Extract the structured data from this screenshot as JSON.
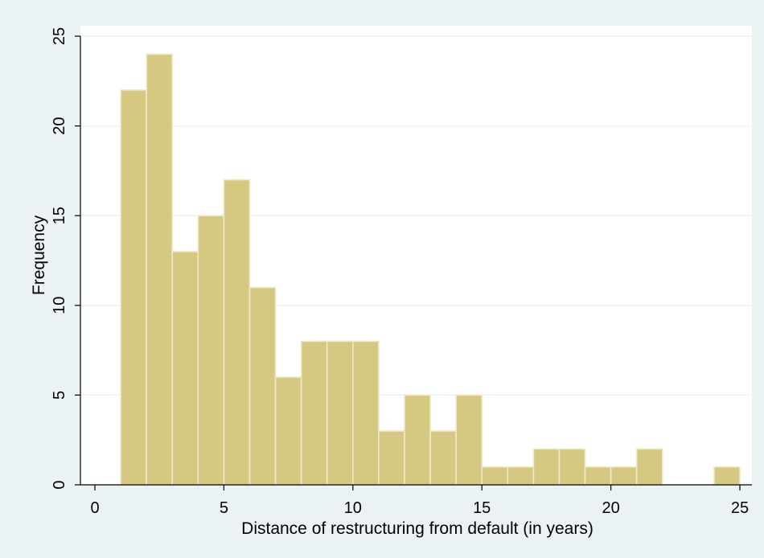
{
  "chart_data": {
    "type": "bar",
    "subtype": "histogram",
    "title": "",
    "xlabel": "Distance of restructuring from default (in years)",
    "ylabel": "Frequency",
    "xlim": [
      0,
      25
    ],
    "ylim": [
      0,
      25
    ],
    "xticks": [
      0,
      5,
      10,
      15,
      20,
      25
    ],
    "yticks": [
      0,
      5,
      10,
      15,
      20,
      25
    ],
    "grid": "horizontal",
    "legend": "none",
    "bin_width": 1,
    "bins": [
      {
        "start": 1,
        "end": 2,
        "value": 22
      },
      {
        "start": 2,
        "end": 3,
        "value": 24
      },
      {
        "start": 3,
        "end": 4,
        "value": 13
      },
      {
        "start": 4,
        "end": 5,
        "value": 15
      },
      {
        "start": 5,
        "end": 6,
        "value": 17
      },
      {
        "start": 6,
        "end": 7,
        "value": 11
      },
      {
        "start": 7,
        "end": 8,
        "value": 6
      },
      {
        "start": 8,
        "end": 9,
        "value": 8
      },
      {
        "start": 9,
        "end": 10,
        "value": 8
      },
      {
        "start": 10,
        "end": 11,
        "value": 8
      },
      {
        "start": 11,
        "end": 12,
        "value": 3
      },
      {
        "start": 12,
        "end": 13,
        "value": 5
      },
      {
        "start": 13,
        "end": 14,
        "value": 3
      },
      {
        "start": 14,
        "end": 15,
        "value": 5
      },
      {
        "start": 15,
        "end": 16,
        "value": 1
      },
      {
        "start": 16,
        "end": 17,
        "value": 1
      },
      {
        "start": 17,
        "end": 18,
        "value": 2
      },
      {
        "start": 18,
        "end": 19,
        "value": 2
      },
      {
        "start": 19,
        "end": 20,
        "value": 1
      },
      {
        "start": 20,
        "end": 21,
        "value": 1
      },
      {
        "start": 21,
        "end": 22,
        "value": 2
      },
      {
        "start": 24,
        "end": 25,
        "value": 1
      }
    ],
    "colors": {
      "outer_background": "#eaf2f3",
      "plot_background": "#ffffff",
      "bar_fill": "#d5c982",
      "bar_stroke": "#efe9c9",
      "gridline": "#eaf2f3",
      "axis": "#000000"
    }
  }
}
